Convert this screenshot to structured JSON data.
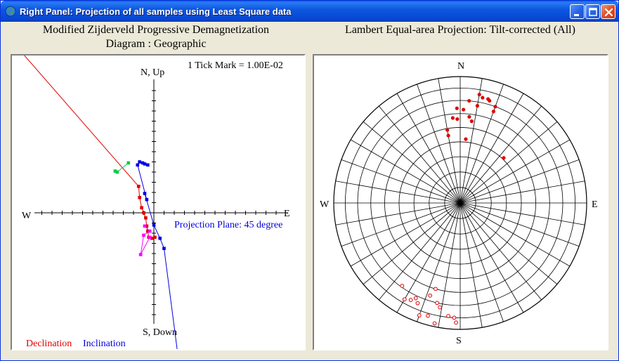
{
  "window": {
    "title": "Right Panel: Projection of all samples using Least Square data",
    "icon": "globe-icon"
  },
  "zijderveld": {
    "title_line1": "Modified Zijderveld Progressive Demagnetization",
    "title_line2": "Diagram : Geographic",
    "tick_note": "1 Tick Mark = 1.00E-02",
    "label_up": "N, Up",
    "label_down": "S, Down",
    "label_w": "W",
    "label_e": "E",
    "projection_note": "Projection Plane: 45 degree",
    "legend_declination": "Declination",
    "legend_inclination": "Inclination",
    "colors": {
      "declination": "#e00000",
      "inclination": "#0000e0",
      "green": "#00cc44",
      "magenta": "#ff00ff",
      "axis": "#000000"
    }
  },
  "lambert": {
    "title": "Lambert Equal-area Projection: Tilt-corrected (All)",
    "label_n": "N",
    "label_s": "S",
    "label_e": "E",
    "label_w": "W"
  },
  "chart_data": [
    {
      "type": "scatter",
      "title": "Modified Zijderveld Progressive Demagnetization Diagram : Geographic",
      "tick_unit": 0.01,
      "series": [
        {
          "name": "Declination",
          "points": [
            [
              -0.138,
              0.167
            ],
            [
              -0.015,
              0.026
            ],
            [
              -0.014,
              0.015
            ],
            [
              -0.012,
              0.005
            ],
            [
              -0.01,
              0.0
            ],
            [
              -0.008,
              -0.005
            ],
            [
              -0.007,
              -0.013
            ],
            [
              -0.006,
              -0.018
            ],
            [
              -0.005,
              -0.024
            ],
            [
              -0.002,
              -0.025
            ],
            [
              0.001,
              -0.024
            ]
          ]
        },
        {
          "name": "Inclination",
          "points": [
            [
              0.025,
              -0.151
            ],
            [
              0.01,
              -0.035
            ],
            [
              0.006,
              -0.025
            ],
            [
              0.0,
              -0.012
            ],
            [
              -0.009,
              0.019
            ],
            [
              -0.007,
              0.013
            ],
            [
              -0.016,
              0.047
            ],
            [
              -0.014,
              0.05
            ],
            [
              -0.011,
              0.049
            ],
            [
              -0.009,
              0.048
            ],
            [
              -0.006,
              0.047
            ]
          ]
        },
        {
          "name": "",
          "points": [
            [
              -0.038,
              0.041
            ],
            [
              -0.036,
              0.04
            ],
            [
              -0.025,
              0.049
            ]
          ]
        },
        {
          "name": "",
          "points": [
            [
              -0.009,
              -0.013
            ],
            [
              -0.004,
              -0.018
            ],
            [
              -0.01,
              -0.022
            ],
            [
              -0.013,
              -0.041
            ],
            [
              -0.004,
              -0.024
            ]
          ]
        }
      ]
    },
    {
      "type": "scatter",
      "title": "Lambert Equal-area Projection: Tilt-corrected (All)",
      "projection": "lambert-equal-area",
      "series": [
        {
          "name": "",
          "hemisphere": "lower",
          "marker": "filled",
          "points": [
            [
              5,
              48
            ],
            [
              350,
              45
            ],
            [
              350,
              41
            ],
            [
              6,
              32
            ],
            [
              8,
              35
            ],
            [
              44,
              49
            ],
            [
              10,
              23
            ],
            [
              5,
              20
            ],
            [
              20,
              20
            ],
            [
              15,
              16
            ],
            [
              12,
              16
            ],
            [
              358,
              34
            ],
            [
              355,
              33
            ],
            [
              2,
              27
            ],
            [
              358,
              26
            ],
            [
              20,
              24
            ],
            [
              16,
              17
            ],
            [
              10,
              14
            ]
          ]
        },
        {
          "name": "",
          "hemisphere": "upper",
          "marker": "open",
          "points": [
            [
              196,
              30
            ],
            [
              198,
              24
            ],
            [
              205,
              18
            ],
            [
              193,
              20
            ],
            [
              191,
              17
            ],
            [
              215,
              21
            ],
            [
              210,
              13
            ],
            [
              207,
              15
            ],
            [
              203,
              15
            ],
            [
              186,
              11
            ],
            [
              183,
              10
            ],
            [
              182,
              6
            ],
            [
              200,
              6
            ],
            [
              196,
              8
            ],
            [
              192,
              3
            ]
          ]
        }
      ]
    }
  ]
}
